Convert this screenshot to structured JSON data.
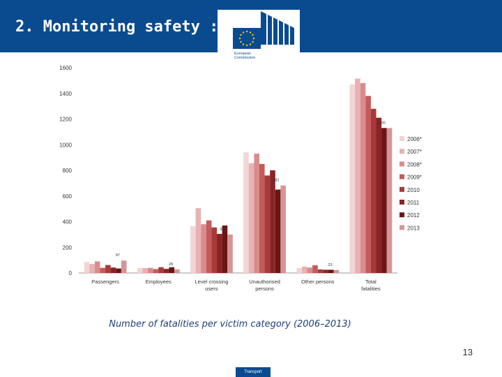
{
  "slide": {
    "title": "2. Monitoring safety :",
    "logo_line1": "European",
    "logo_line2": "Commission",
    "caption": "Number of fatalities per victim category (2006–2013)",
    "page_number": "13",
    "footer_label": "Transport"
  },
  "colors": {
    "header": "#0a4b8f",
    "series": [
      "#f2d5d5",
      "#e8b2b2",
      "#d98c8c",
      "#c45a5a",
      "#a83a3a",
      "#8a2424",
      "#6b1515",
      "#d69595"
    ]
  },
  "chart_data": {
    "type": "bar",
    "categories": [
      "Passengers",
      "Employees",
      "Level crossing users",
      "Unauthorised persons",
      "Other persons",
      "Total fatalities"
    ],
    "ylim": [
      0,
      1600
    ],
    "yticks": [
      0,
      200,
      400,
      600,
      800,
      1000,
      1200,
      1400,
      1600
    ],
    "grid": false,
    "legend_position": "right",
    "series": [
      {
        "name": "2006*",
        "values": [
          85,
          38,
          365,
          940,
          38,
          1470
        ]
      },
      {
        "name": "2007*",
        "values": [
          70,
          38,
          505,
          855,
          50,
          1515
        ]
      },
      {
        "name": "2008*",
        "values": [
          90,
          40,
          380,
          930,
          42,
          1480
        ]
      },
      {
        "name": "2009*",
        "values": [
          40,
          30,
          410,
          850,
          60,
          1380
        ]
      },
      {
        "name": "2010",
        "values": [
          62,
          45,
          355,
          760,
          28,
          1280
        ]
      },
      {
        "name": "2011",
        "values": [
          42,
          32,
          305,
          800,
          25,
          1210
        ]
      },
      {
        "name": "2012",
        "values": [
          35,
          45,
          370,
          650,
          25,
          1130
        ]
      },
      {
        "name": "2013",
        "values": [
          97,
          28,
          300,
          682,
          23,
          1130
        ]
      }
    ],
    "data_labels": [
      {
        "category_index": 0,
        "series_index": 7,
        "text": "97"
      },
      {
        "category_index": 1,
        "series_index": 7,
        "text": "28"
      },
      {
        "category_index": 2,
        "series_index": 7,
        "text": "300"
      },
      {
        "category_index": 3,
        "series_index": 7,
        "text": "682"
      },
      {
        "category_index": 4,
        "series_index": 7,
        "text": "23"
      },
      {
        "category_index": 5,
        "series_index": 7,
        "text": "1130"
      }
    ]
  }
}
